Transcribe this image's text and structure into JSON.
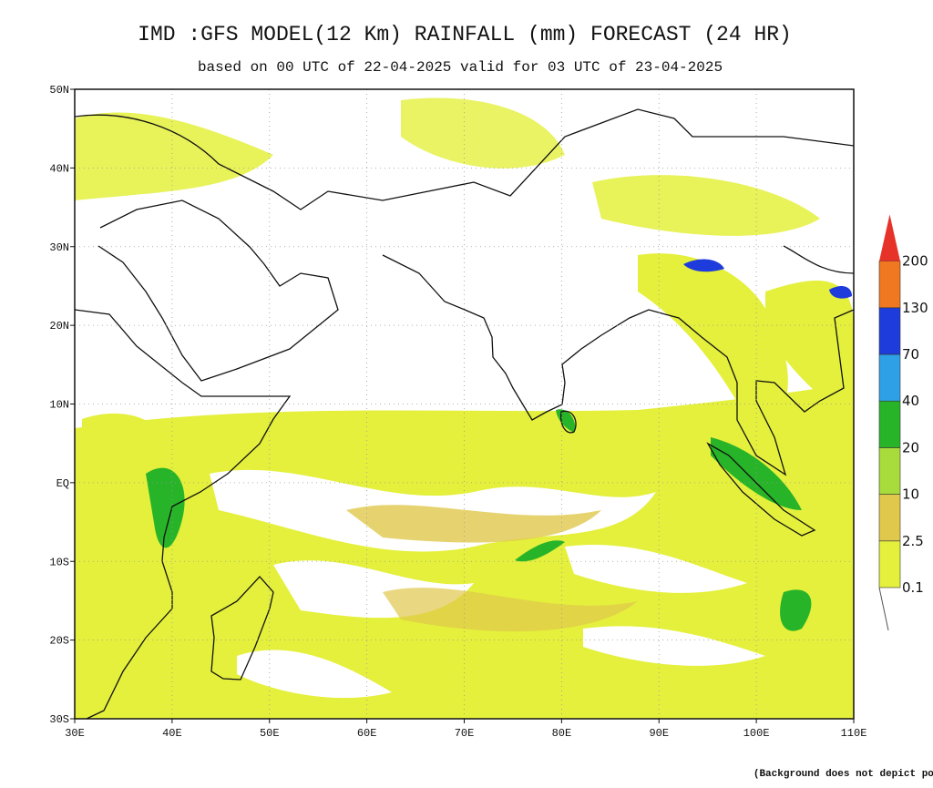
{
  "header": {
    "title": "IMD :GFS MODEL(12 Km) RAINFALL (mm) FORECAST (24 HR)",
    "subtitle": "based on 00 UTC of 22-04-2025 valid for 03 UTC of 23-04-2025"
  },
  "map": {
    "lat_labels": [
      "50N",
      "40N",
      "30N",
      "20N",
      "10N",
      "EQ",
      "10S",
      "20S",
      "30S"
    ],
    "lon_labels": [
      "30E",
      "40E",
      "50E",
      "60E",
      "70E",
      "80E",
      "90E",
      "100E",
      "110E"
    ]
  },
  "legend": {
    "labels": [
      "0.1",
      "2.5",
      "10",
      "20",
      "40",
      "70",
      "130",
      "200"
    ],
    "colors": [
      "#e4f03c",
      "#e0c84c",
      "#a8dc3c",
      "#28b428",
      "#2ea0e6",
      "#1e3cdc",
      "#f07820",
      "#e63228"
    ]
  },
  "footer": "(Background does not depict political boundary)"
}
